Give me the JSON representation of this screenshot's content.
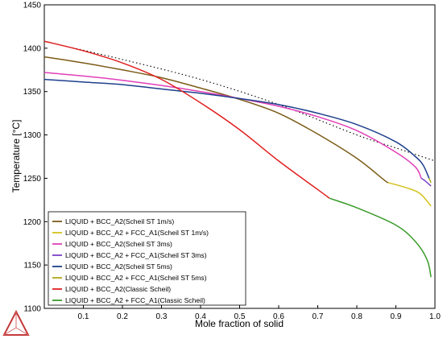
{
  "chart_data": {
    "type": "line",
    "xlabel": "Mole fraction of solid",
    "ylabel": "Temperature [°C]",
    "xlim": [
      0,
      1.0
    ],
    "ylim": [
      1100,
      1450
    ],
    "x_ticks": [
      0.1,
      0.2,
      0.3,
      0.4,
      0.5,
      0.6,
      0.7,
      0.8,
      0.9,
      1.0
    ],
    "x_tick_labels": [
      "0.1",
      "0.2",
      "0.3",
      "0.4",
      "0.5",
      "0.6",
      "0.7",
      "0.8",
      "0.9",
      "1.0"
    ],
    "y_ticks": [
      1100,
      1150,
      1200,
      1250,
      1300,
      1350,
      1400,
      1450
    ],
    "y_tick_labels": [
      "1100",
      "1150",
      "1200",
      "1250",
      "1300",
      "1350",
      "1400",
      "1450"
    ],
    "grid": false,
    "legend_position": "bottom-left",
    "series": [
      {
        "name": "LIQUID + BCC_A2(Scheil ST 1m/s)",
        "color": "#7b5b16",
        "dash": "solid",
        "points": [
          [
            0,
            1390
          ],
          [
            0.1,
            1383
          ],
          [
            0.2,
            1375
          ],
          [
            0.3,
            1366
          ],
          [
            0.4,
            1354
          ],
          [
            0.5,
            1341
          ],
          [
            0.6,
            1325
          ],
          [
            0.7,
            1301
          ],
          [
            0.8,
            1273
          ],
          [
            0.87,
            1248
          ],
          [
            0.88,
            1245
          ]
        ]
      },
      {
        "name": "LIQUID + BCC_A2 + FCC_A1(Scheil ST 1m/s)",
        "color": "#d4c21a",
        "dash": "solid",
        "points": [
          [
            0.88,
            1245
          ],
          [
            0.92,
            1240
          ],
          [
            0.96,
            1233
          ],
          [
            0.99,
            1218
          ]
        ]
      },
      {
        "name": "LIQUID + BCC_A2(Scheil ST 3ms)",
        "color": "#e040b8",
        "dash": "solid",
        "points": [
          [
            0,
            1372
          ],
          [
            0.1,
            1368
          ],
          [
            0.2,
            1363
          ],
          [
            0.3,
            1357
          ],
          [
            0.4,
            1350
          ],
          [
            0.5,
            1342
          ],
          [
            0.6,
            1333
          ],
          [
            0.7,
            1321
          ],
          [
            0.8,
            1305
          ],
          [
            0.9,
            1280
          ],
          [
            0.95,
            1263
          ],
          [
            0.965,
            1250
          ]
        ]
      },
      {
        "name": "LIQUID + BCC_A2 + FCC_A1(Scheil ST 3ms)",
        "color": "#7b40c8",
        "dash": "solid",
        "points": [
          [
            0.965,
            1250
          ],
          [
            0.975,
            1247
          ],
          [
            0.985,
            1243
          ],
          [
            0.99,
            1241
          ]
        ]
      },
      {
        "name": "LIQUID + BCC_A2(Scheil ST 5ms)",
        "color": "#1e3f8c",
        "dash": "solid",
        "points": [
          [
            0,
            1364
          ],
          [
            0.1,
            1361
          ],
          [
            0.2,
            1358
          ],
          [
            0.3,
            1353
          ],
          [
            0.4,
            1348
          ],
          [
            0.5,
            1342
          ],
          [
            0.6,
            1335
          ],
          [
            0.7,
            1325
          ],
          [
            0.8,
            1312
          ],
          [
            0.9,
            1292
          ],
          [
            0.95,
            1275
          ],
          [
            0.97,
            1265
          ],
          [
            0.985,
            1250
          ]
        ]
      },
      {
        "name": "LIQUID + BCC_A2 + FCC_A1(Scheil ST 5ms)",
        "color": "#b0a818",
        "dash": "solid",
        "points": [
          [
            0.985,
            1250
          ],
          [
            0.99,
            1245
          ]
        ]
      },
      {
        "name": "LIQUID + BCC_A2(Classic Scheil)",
        "color": "#e02020",
        "dash": "solid",
        "points": [
          [
            0,
            1408
          ],
          [
            0.1,
            1397
          ],
          [
            0.2,
            1383
          ],
          [
            0.3,
            1364
          ],
          [
            0.4,
            1337
          ],
          [
            0.5,
            1306
          ],
          [
            0.6,
            1270
          ],
          [
            0.7,
            1237
          ],
          [
            0.73,
            1227
          ]
        ]
      },
      {
        "name": "LIQUID + BCC_A2 + FCC_A1(Classic Scheil)",
        "color": "#3a9a2a",
        "dash": "solid",
        "points": [
          [
            0.73,
            1227
          ],
          [
            0.8,
            1216
          ],
          [
            0.9,
            1196
          ],
          [
            0.95,
            1177
          ],
          [
            0.98,
            1156
          ],
          [
            0.99,
            1136
          ]
        ]
      },
      {
        "name": "",
        "color": "#000000",
        "dash": "dotted",
        "points": [
          [
            0,
            1408
          ],
          [
            0.2,
            1387
          ],
          [
            0.4,
            1364
          ],
          [
            0.6,
            1335
          ],
          [
            0.8,
            1300
          ],
          [
            0.9,
            1285
          ],
          [
            1.0,
            1270
          ]
        ]
      }
    ]
  }
}
